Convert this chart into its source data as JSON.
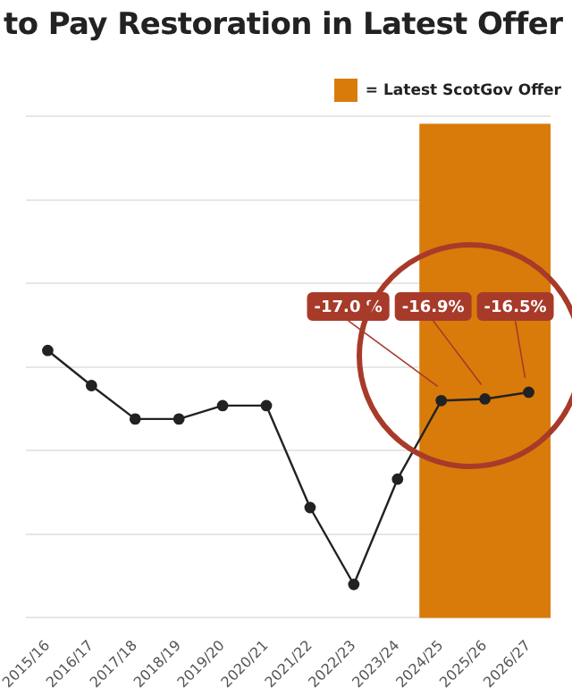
{
  "chart_data": {
    "type": "line",
    "title": "to Pay Restoration in Latest Offer",
    "categories": [
      "2015/16",
      "2016/17",
      "2017/18",
      "2018/19",
      "2019/20",
      "2020/21",
      "2021/22",
      "2022/23",
      "2023/24",
      "2024/25",
      "2025/26",
      "2026/27"
    ],
    "series": [
      {
        "color": "#222222",
        "values": [
          -14.0,
          -16.1,
          -18.1,
          -18.1,
          -17.3,
          -17.3,
          -23.4,
          -28.0,
          -21.7,
          -17.0,
          -16.9,
          -16.5
        ],
        "value_labels": [
          null,
          null,
          null,
          null,
          null,
          null,
          null,
          null,
          null,
          "-17.0 %",
          "-16.9%",
          "-16.5%"
        ]
      }
    ],
    "ylim": [
      -30,
      0
    ],
    "yticks": [
      {
        "value": -30,
        "label": null
      },
      {
        "value": -25,
        "label": null
      },
      {
        "value": -20,
        "label": null
      },
      {
        "value": -15,
        "label": null
      },
      {
        "value": -10,
        "label": null
      },
      {
        "value": -5,
        "label": null
      },
      {
        "value": 0,
        "label": null
      }
    ],
    "tick_labels": "x",
    "grid": "y",
    "marker": "circle",
    "line_style": "solid",
    "legend": "top right",
    "bands": [
      {
        "axis": "x",
        "from": "2024/25",
        "to": "2026/27",
        "label": "= Latest ScotGov Offer",
        "color": "#d97b0a"
      }
    ]
  }
}
